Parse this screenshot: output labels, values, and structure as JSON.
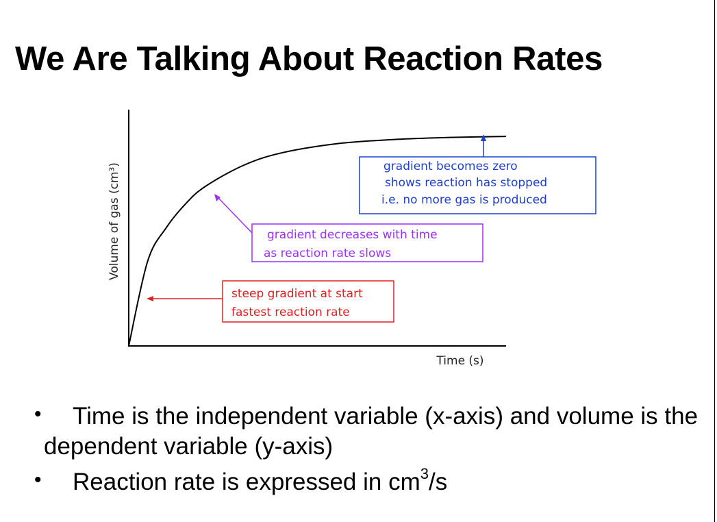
{
  "slide": {
    "title": "We Are Talking About Reaction Rates"
  },
  "chart_data": {
    "type": "line",
    "title": "",
    "xlabel": "Time (s)",
    "ylabel": "Volume of gas (cm³)",
    "series": [
      {
        "name": "Volume of gas",
        "x": [
          0,
          5,
          10,
          15,
          20,
          30,
          40,
          55,
          70,
          85,
          100
        ],
        "values": [
          0,
          40,
          56,
          67,
          75,
          85,
          91,
          95.5,
          97.5,
          98.5,
          99
        ]
      }
    ],
    "annotations": [
      {
        "id": "steep",
        "lines": [
          "steep gradient at start",
          "fastest reaction rate"
        ],
        "color": "#e02020"
      },
      {
        "id": "decreases",
        "lines": [
          "gradient decreases with time",
          "as reaction rate slows"
        ],
        "color": "#9b30ff"
      },
      {
        "id": "zero",
        "lines": [
          "gradient becomes zero",
          "shows reaction has stopped",
          "i.e. no more gas is produced"
        ],
        "color": "#1f3fcf"
      }
    ]
  },
  "bullets": [
    {
      "text": "Time is the independent variable (x-axis) and volume is the dependent variable (y-axis)"
    },
    {
      "text_before": "Reaction rate is expressed in cm",
      "sup": "3",
      "text_after": "/s"
    }
  ]
}
